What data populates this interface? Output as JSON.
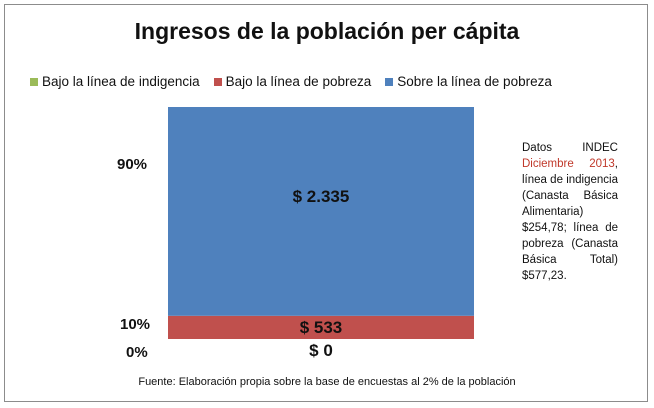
{
  "chart_data": {
    "type": "bar",
    "stacked": true,
    "title": "Ingresos de la población per cápita",
    "categories": [
      ""
    ],
    "series": [
      {
        "name": "Bajo la línea de indigencia",
        "values": [
          0
        ],
        "label": "$ 0",
        "color": "#9bbb59"
      },
      {
        "name": "Bajo la línea de pobreza",
        "values": [
          10
        ],
        "label": "$ 533",
        "color": "#c0504d"
      },
      {
        "name": "Sobre la línea de pobreza",
        "values": [
          90
        ],
        "label": "$ 2.335",
        "color": "#4f81bd"
      }
    ],
    "y_ticks": [
      "0%",
      "10%",
      "90%"
    ],
    "ylim": [
      0,
      100
    ],
    "legend_position": "top",
    "grid": false
  },
  "note": {
    "line1": "Datos INDEC",
    "date": "Diciembre 2013",
    "rest": ", línea de indigencia (Canasta Básica Alimentaria) $254,78; línea de pobreza (Canasta Básica Total) $577,23."
  },
  "footer": "Fuente: Elaboración propia sobre la base de encuestas al 2% de la población"
}
